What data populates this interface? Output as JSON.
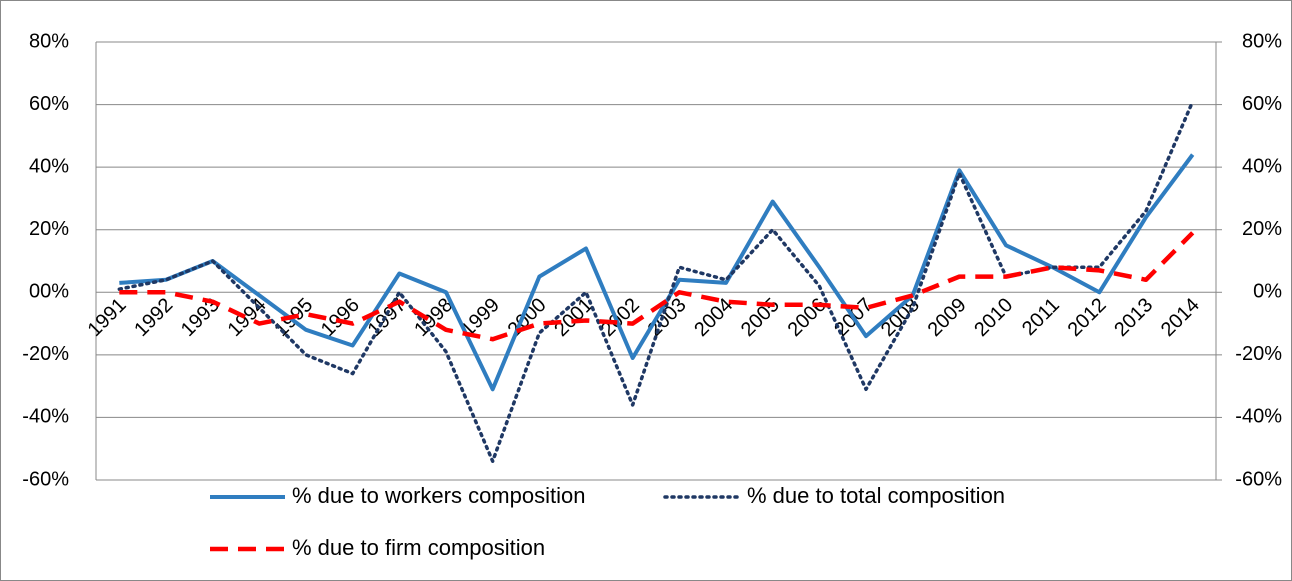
{
  "chart_data": {
    "type": "line",
    "categories": [
      "1991",
      "1992",
      "1993",
      "1994",
      "1995",
      "1996",
      "1997",
      "1998",
      "1999",
      "2000",
      "2001",
      "2002",
      "2003",
      "2004",
      "2005",
      "2006",
      "2007",
      "2008",
      "2009",
      "2010",
      "2011",
      "2012",
      "2013",
      "2014"
    ],
    "series": [
      {
        "name": "% due to workers composition",
        "color": "#2f7dc0",
        "style": "solid",
        "values": [
          3,
          4,
          10,
          -1,
          -12,
          -17,
          6,
          0,
          -31,
          5,
          14,
          -21,
          4,
          3,
          29,
          8,
          -14,
          -1,
          39,
          15,
          8,
          0,
          24,
          44
        ]
      },
      {
        "name": "% due to total composition",
        "color": "#1f3864",
        "style": "dotted",
        "values": [
          1,
          4,
          10,
          -5,
          -20,
          -26,
          0,
          -19,
          -54,
          -13,
          0,
          -36,
          8,
          4,
          20,
          2,
          -31,
          -5,
          38,
          5,
          8,
          8,
          26,
          61
        ]
      },
      {
        "name": "% due to firm composition",
        "color": "#ff0000",
        "style": "dashed",
        "values": [
          0,
          0,
          -3,
          -10,
          -7,
          -10,
          -3,
          -12,
          -15,
          -10,
          -9,
          -10,
          0,
          -3,
          -4,
          -4,
          -5,
          -1,
          5,
          5,
          8,
          7,
          4,
          19
        ]
      }
    ],
    "ylim": [
      -60,
      80
    ],
    "yticks": [
      {
        "value": -60,
        "label": "-60%"
      },
      {
        "value": -40,
        "label": "-40%"
      },
      {
        "value": -20,
        "label": "-20%"
      },
      {
        "value": 0,
        "label": "00%"
      },
      {
        "value": 20,
        "label": "20%"
      },
      {
        "value": 40,
        "label": "40%"
      },
      {
        "value": 60,
        "label": "60%"
      },
      {
        "value": 80,
        "label": "80%"
      }
    ],
    "y2lim": [
      -60,
      80
    ],
    "y2ticks": [
      {
        "value": -60,
        "label": "-60%"
      },
      {
        "value": -40,
        "label": "-40%"
      },
      {
        "value": -20,
        "label": "-20%"
      },
      {
        "value": 0,
        "label": "0%"
      },
      {
        "value": 20,
        "label": "20%"
      },
      {
        "value": 40,
        "label": "40%"
      },
      {
        "value": 60,
        "label": "60%"
      },
      {
        "value": 80,
        "label": "80%"
      }
    ],
    "grid": true
  }
}
